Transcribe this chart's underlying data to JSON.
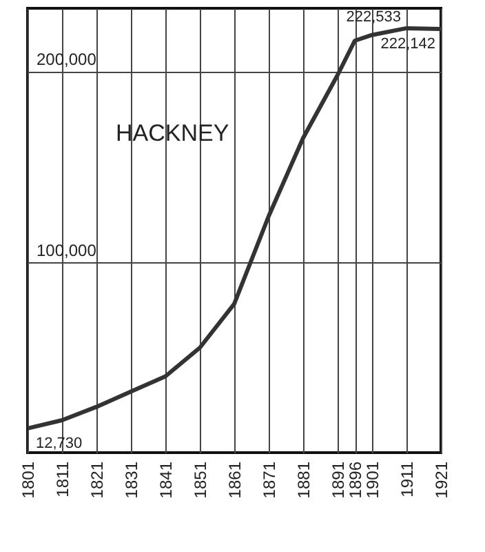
{
  "chart_data": {
    "type": "line",
    "title": "HACKNEY",
    "x": [
      1801,
      1811,
      1821,
      1831,
      1841,
      1851,
      1861,
      1871,
      1881,
      1891,
      1896,
      1901,
      1911,
      1921
    ],
    "series": [
      {
        "color": "#333333",
        "values": [
          12730,
          17000,
          24000,
          32000,
          40000,
          55000,
          78000,
          124000,
          165000,
          198000,
          216000,
          219000,
          222533,
          222142
        ],
        "value_labels": [
          "12,730",
          null,
          null,
          null,
          null,
          null,
          null,
          null,
          null,
          null,
          null,
          null,
          "222,533",
          "222,142"
        ]
      }
    ],
    "xlim": [
      1801,
      1921
    ],
    "xticks": [
      1801,
      1811,
      1821,
      1831,
      1841,
      1851,
      1861,
      1871,
      1881,
      1891,
      1896,
      1901,
      1911,
      1921
    ],
    "ylim": [
      0,
      233000
    ],
    "yticks": [
      {
        "value": 100000,
        "label": "100,000"
      },
      {
        "value": 200000,
        "label": "200,000"
      }
    ],
    "grid": true,
    "marker": "none",
    "line_style": "solid"
  }
}
